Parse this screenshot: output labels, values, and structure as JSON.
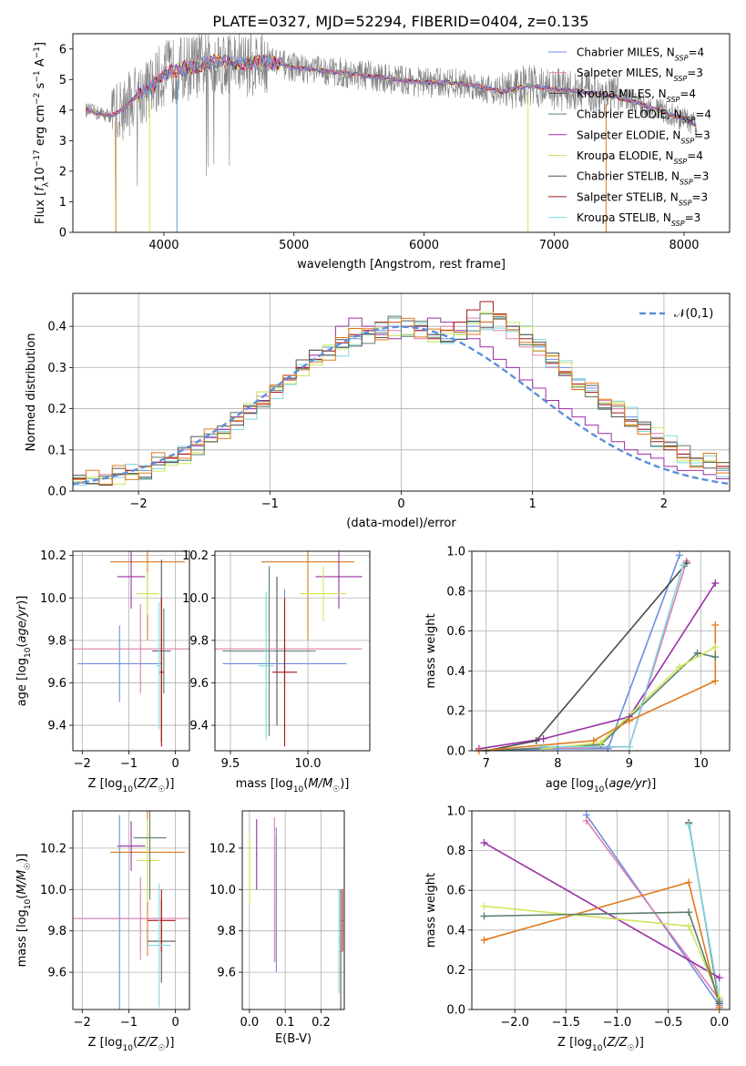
{
  "title": "PLATE=0327, MJD=52294, FIBERID=0404, z=0.135",
  "colors": {
    "blue": "#6a8fe0",
    "pink": "#e07fae",
    "gray": "#4a4a4a",
    "darkgreen": "#5a7f6a",
    "purple": "#9a2fa6",
    "yellowgreen": "#cfe65a",
    "darkgray": "#555555",
    "red": "#a81616",
    "cyan": "#80d8de",
    "orange": "#e07a1e",
    "spectrum": "#808080"
  },
  "chart_data": [
    {
      "id": "spectrum",
      "type": "line",
      "xlabel": "wavelength [Angstrom, rest frame]",
      "ylabel": "Flux [f_λ 10^-17 erg cm^-2 s^-1 A^-1]",
      "xlim": [
        3300,
        8350
      ],
      "ylim": [
        0,
        6.5
      ],
      "xticks": [
        "4000",
        "5000",
        "6000",
        "7000",
        "8000"
      ],
      "yticks": [
        "0",
        "1",
        "2",
        "3",
        "4",
        "5",
        "6"
      ],
      "legend_position": "top-right",
      "legend": [
        {
          "main": "Chabrier MILES, N",
          "sub": "SSP",
          "tail": "=4",
          "color": "blue"
        },
        {
          "main": "Salpeter MILES, N",
          "sub": "SSP",
          "tail": "=3",
          "color": "pink"
        },
        {
          "main": "Kroupa MILES, N",
          "sub": "SSP",
          "tail": "=4",
          "color": "gray"
        },
        {
          "main": "Chabrier ELODIE, N",
          "sub": "SSP",
          "tail": "=4",
          "color": "darkgreen"
        },
        {
          "main": "Salpeter ELODIE, N",
          "sub": "SSP",
          "tail": "=3",
          "color": "purple"
        },
        {
          "main": "Kroupa ELODIE, N",
          "sub": "SSP",
          "tail": "=4",
          "color": "yellowgreen"
        },
        {
          "main": "Chabrier STELIB, N",
          "sub": "SSP",
          "tail": "=3",
          "color": "darkgray"
        },
        {
          "main": "Salpeter STELIB, N",
          "sub": "SSP",
          "tail": "=3",
          "color": "red"
        },
        {
          "main": "Kroupa STELIB, N",
          "sub": "SSP",
          "tail": "=3",
          "color": "cyan"
        }
      ],
      "continuum": [
        [
          3400,
          4.0
        ],
        [
          3500,
          3.9
        ],
        [
          3600,
          3.8
        ],
        [
          3700,
          4.1
        ],
        [
          3800,
          4.5
        ],
        [
          3900,
          4.7
        ],
        [
          4000,
          5.2
        ],
        [
          4200,
          5.4
        ],
        [
          4400,
          5.6
        ],
        [
          4600,
          5.5
        ],
        [
          4800,
          5.6
        ],
        [
          5000,
          5.4
        ],
        [
          5200,
          5.3
        ],
        [
          5400,
          5.2
        ],
        [
          5600,
          5.1
        ],
        [
          5800,
          5.0
        ],
        [
          6000,
          4.9
        ],
        [
          6200,
          4.9
        ],
        [
          6400,
          4.8
        ],
        [
          6600,
          4.6
        ],
        [
          6800,
          4.8
        ],
        [
          7000,
          4.7
        ],
        [
          7200,
          4.6
        ],
        [
          7400,
          4.5
        ],
        [
          7600,
          4.3
        ],
        [
          7800,
          4.0
        ],
        [
          8000,
          3.7
        ],
        [
          8100,
          3.5
        ]
      ]
    },
    {
      "id": "residuals",
      "type": "histogram",
      "xlabel": "(data-model)/error",
      "ylabel": "Normed distribution",
      "xlim": [
        -2.5,
        2.5
      ],
      "ylim": [
        0,
        0.48
      ],
      "xticks": [
        "−2",
        "−1",
        "0",
        "1",
        "2"
      ],
      "yticks": [
        "0.0",
        "0.1",
        "0.2",
        "0.3",
        "0.4"
      ],
      "legend": "𝒩(0,1)",
      "legend_position": "top-right",
      "bin_width": 0.1,
      "series": [
        {
          "name": "Chabrier MILES",
          "color": "blue",
          "values": [
            0.02,
            0.03,
            0.03,
            0.04,
            0.05,
            0.05,
            0.07,
            0.08,
            0.09,
            0.11,
            0.13,
            0.15,
            0.17,
            0.19,
            0.22,
            0.24,
            0.27,
            0.3,
            0.32,
            0.34,
            0.35,
            0.37,
            0.38,
            0.39,
            0.4,
            0.4,
            0.39,
            0.38,
            0.37,
            0.38,
            0.4,
            0.41,
            0.42,
            0.4,
            0.38,
            0.35,
            0.32,
            0.3,
            0.27,
            0.25,
            0.22,
            0.2,
            0.18,
            0.15,
            0.13,
            0.11,
            0.09,
            0.08,
            0.07,
            0.05
          ]
        },
        {
          "name": "Salpeter MILES",
          "color": "pink",
          "values": [
            0.03,
            0.03,
            0.04,
            0.04,
            0.05,
            0.06,
            0.07,
            0.08,
            0.1,
            0.12,
            0.13,
            0.15,
            0.18,
            0.2,
            0.23,
            0.25,
            0.28,
            0.3,
            0.33,
            0.35,
            0.36,
            0.38,
            0.39,
            0.4,
            0.39,
            0.38,
            0.37,
            0.38,
            0.4,
            0.41,
            0.42,
            0.41,
            0.39,
            0.37,
            0.35,
            0.33,
            0.3,
            0.28,
            0.26,
            0.24,
            0.22,
            0.2,
            0.17,
            0.16,
            0.14,
            0.12,
            0.1,
            0.08,
            0.07,
            0.06
          ]
        },
        {
          "name": "Salpeter ELODIE",
          "color": "purple",
          "values": [
            0.02,
            0.03,
            0.03,
            0.04,
            0.05,
            0.06,
            0.07,
            0.08,
            0.09,
            0.11,
            0.13,
            0.15,
            0.18,
            0.2,
            0.22,
            0.25,
            0.27,
            0.3,
            0.33,
            0.35,
            0.4,
            0.42,
            0.4,
            0.38,
            0.37,
            0.38,
            0.4,
            0.42,
            0.41,
            0.39,
            0.37,
            0.35,
            0.32,
            0.3,
            0.27,
            0.25,
            0.22,
            0.2,
            0.18,
            0.16,
            0.14,
            0.12,
            0.1,
            0.09,
            0.08,
            0.06,
            0.05,
            0.05,
            0.04,
            0.03
          ]
        },
        {
          "name": "Salpeter STELIB",
          "color": "red",
          "values": [
            0.03,
            0.03,
            0.03,
            0.04,
            0.05,
            0.06,
            0.07,
            0.08,
            0.09,
            0.1,
            0.12,
            0.14,
            0.17,
            0.19,
            0.21,
            0.24,
            0.27,
            0.3,
            0.32,
            0.34,
            0.36,
            0.38,
            0.39,
            0.41,
            0.42,
            0.4,
            0.39,
            0.37,
            0.39,
            0.41,
            0.44,
            0.46,
            0.43,
            0.4,
            0.37,
            0.34,
            0.31,
            0.29,
            0.26,
            0.24,
            0.21,
            0.19,
            0.17,
            0.15,
            0.12,
            0.1,
            0.09,
            0.08,
            0.07,
            0.06
          ]
        }
      ]
    },
    {
      "id": "age-vs-Z",
      "type": "scatter",
      "xlabel": "Z [log10(Z/Z☉)]",
      "ylabel": "age [log10(age/yr)]",
      "xlim": [
        -2.2,
        0.3
      ],
      "ylim": [
        9.28,
        10.22
      ],
      "xticks": [
        "−2",
        "−1",
        "0"
      ],
      "yticks": [
        "9.4",
        "9.6",
        "9.8",
        "10.0",
        "10.2"
      ]
    },
    {
      "id": "age-vs-mass",
      "type": "scatter",
      "xlabel": "mass [log10(M/M☉)]",
      "xlim": [
        9.4,
        10.4
      ],
      "ylim": [
        9.28,
        10.22
      ],
      "xticks": [
        "9.5",
        "10.0"
      ],
      "yticks": [
        "9.4",
        "9.6",
        "9.8",
        "10.0",
        "10.2"
      ]
    },
    {
      "id": "weight-vs-age",
      "type": "line",
      "xlabel": "age [log10(age/yr)]",
      "ylabel": "mass weight",
      "xlim": [
        6.8,
        10.4
      ],
      "ylim": [
        0,
        1
      ],
      "xticks": [
        "7",
        "8",
        "9",
        "10"
      ],
      "yticks": [
        "0.0",
        "0.2",
        "0.4",
        "0.6",
        "0.8",
        "1.0"
      ],
      "series": [
        {
          "color": "blue",
          "points": [
            [
              6.9,
              0.0
            ],
            [
              8.0,
              0.01
            ],
            [
              8.7,
              0.01
            ],
            [
              9.7,
              0.98
            ]
          ]
        },
        {
          "color": "pink",
          "points": [
            [
              7.8,
              0.01
            ],
            [
              9.0,
              0.02
            ],
            [
              9.8,
              0.95
            ]
          ]
        },
        {
          "color": "gray",
          "points": [
            [
              7.0,
              0.0
            ],
            [
              7.7,
              0.05
            ],
            [
              9.8,
              0.94
            ]
          ]
        },
        {
          "color": "darkgreen",
          "points": [
            [
              7.0,
              0.0
            ],
            [
              8.6,
              0.03
            ],
            [
              9.95,
              0.49
            ],
            [
              10.2,
              0.47
            ]
          ]
        },
        {
          "color": "purple",
          "points": [
            [
              6.9,
              0.01
            ],
            [
              7.8,
              0.06
            ],
            [
              9.0,
              0.17
            ],
            [
              10.2,
              0.84
            ]
          ]
        },
        {
          "color": "yellowgreen",
          "points": [
            [
              7.8,
              0.01
            ],
            [
              8.6,
              0.04
            ],
            [
              9.7,
              0.42
            ],
            [
              10.2,
              0.52
            ]
          ]
        },
        {
          "color": "cyan",
          "points": [
            [
              7.8,
              0.02
            ],
            [
              9.0,
              0.02
            ],
            [
              9.75,
              0.93
            ]
          ]
        },
        {
          "color": "orange",
          "points": [
            [
              6.9,
              0.0
            ],
            [
              8.5,
              0.05
            ],
            [
              9.0,
              0.15
            ],
            [
              10.2,
              0.35
            ],
            [
              10.2,
              0.63
            ]
          ]
        }
      ]
    },
    {
      "id": "mass-vs-Z",
      "type": "scatter",
      "xlabel": "Z [log10(Z/Z☉)]",
      "ylabel": "mass [log10(M/M☉)]",
      "xlim": [
        -2.2,
        0.3
      ],
      "ylim": [
        9.42,
        10.38
      ],
      "xticks": [
        "−2",
        "−1",
        "0"
      ],
      "yticks": [
        "9.6",
        "9.8",
        "10.0",
        "10.2"
      ]
    },
    {
      "id": "mass-vs-EBV",
      "type": "scatter",
      "xlabel": "E(B-V)",
      "xlim": [
        -0.02,
        0.265
      ],
      "ylim": [
        9.42,
        10.38
      ],
      "xticks": [
        "0.0",
        "0.1",
        "0.2"
      ],
      "yticks": [
        "9.6",
        "9.8",
        "10.0",
        "10.2"
      ]
    },
    {
      "id": "weight-vs-Z",
      "type": "line",
      "xlabel": "Z [log10(Z/Z☉)]",
      "ylabel": "mass weight",
      "xlim": [
        -2.42,
        0.1
      ],
      "ylim": [
        0,
        1
      ],
      "xticks": [
        "−2.0",
        "−1.5",
        "−1.0",
        "−0.5",
        "0.0"
      ],
      "yticks": [
        "0.0",
        "0.2",
        "0.4",
        "0.6",
        "0.8",
        "1.0"
      ],
      "series": [
        {
          "color": "blue",
          "points": [
            [
              -1.3,
              0.98
            ],
            [
              0.0,
              0.02
            ]
          ]
        },
        {
          "color": "pink",
          "points": [
            [
              -1.3,
              0.95
            ],
            [
              0.0,
              0.05
            ]
          ]
        },
        {
          "color": "gray",
          "points": [
            [
              -0.3,
              0.94
            ],
            [
              0.0,
              0.03
            ]
          ]
        },
        {
          "color": "cyan",
          "points": [
            [
              -0.3,
              0.93
            ],
            [
              0.0,
              0.05
            ]
          ]
        },
        {
          "color": "purple",
          "points": [
            [
              -2.3,
              0.84
            ],
            [
              0.0,
              0.16
            ]
          ]
        },
        {
          "color": "orange",
          "points": [
            [
              -2.3,
              0.35
            ],
            [
              -0.3,
              0.64
            ],
            [
              0.0,
              0.01
            ]
          ]
        },
        {
          "color": "yellowgreen",
          "points": [
            [
              -2.3,
              0.52
            ],
            [
              -0.3,
              0.42
            ],
            [
              0.0,
              0.06
            ]
          ]
        },
        {
          "color": "darkgreen",
          "points": [
            [
              -2.3,
              0.47
            ],
            [
              -0.3,
              0.49
            ],
            [
              0.0,
              0.04
            ]
          ]
        }
      ]
    }
  ]
}
